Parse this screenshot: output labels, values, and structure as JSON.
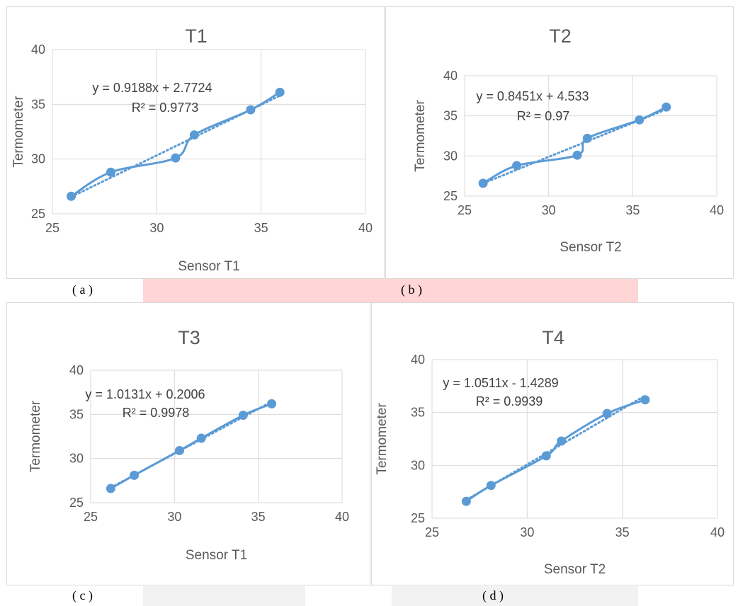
{
  "colors": {
    "line": "#5b9bd5",
    "grid": "#d9d9d9",
    "text": "#595959",
    "band_b": "#ffd5d5",
    "band_d": "#f2f2f2"
  },
  "captions": [
    "( a )",
    "( b )",
    "( c )",
    "( d )"
  ],
  "chart_data": [
    {
      "type": "scatter",
      "title": "T1",
      "xlabel": "Sensor T1",
      "ylabel": "Termometer",
      "xlim": [
        25,
        40
      ],
      "ylim": [
        25,
        40
      ],
      "xticks": [
        "25",
        "30",
        "35",
        "40"
      ],
      "yticks": [
        "25",
        "30",
        "35",
        "40"
      ],
      "grid": true,
      "trendline": {
        "type": "linear",
        "equation": "y = 0.9188x + 2.7724",
        "r2": "R² = 0.9773"
      },
      "series": [
        {
          "x": [
            25.9,
            27.8,
            30.9,
            31.8,
            34.5,
            35.9
          ],
          "y": [
            26.6,
            28.8,
            30.1,
            32.2,
            34.5,
            36.1
          ]
        }
      ]
    },
    {
      "type": "scatter",
      "title": "T2",
      "xlabel": "Sensor T2",
      "ylabel": "Termometer",
      "xlim": [
        25,
        40
      ],
      "ylim": [
        25,
        40
      ],
      "xticks": [
        "25",
        "30",
        "35",
        "40"
      ],
      "yticks": [
        "25",
        "30",
        "35",
        "40"
      ],
      "grid": true,
      "trendline": {
        "type": "linear",
        "equation": "y = 0.8451x + 4.533",
        "r2": "R² = 0.97"
      },
      "series": [
        {
          "x": [
            26.1,
            28.1,
            31.7,
            32.3,
            35.4,
            37.0
          ],
          "y": [
            26.6,
            28.8,
            30.1,
            32.2,
            34.5,
            36.1
          ]
        }
      ]
    },
    {
      "type": "scatter",
      "title": "T3",
      "xlabel": "Sensor T1",
      "ylabel": "Termometer",
      "xlim": [
        25,
        40
      ],
      "ylim": [
        25,
        40
      ],
      "xticks": [
        "25",
        "30",
        "35",
        "40"
      ],
      "yticks": [
        "25",
        "30",
        "35",
        "40"
      ],
      "grid": true,
      "trendline": {
        "type": "linear",
        "equation": "y = 1.0131x + 0.2006",
        "r2": "R² = 0.9978"
      },
      "series": [
        {
          "x": [
            26.2,
            27.6,
            30.3,
            31.6,
            34.1,
            35.8
          ],
          "y": [
            26.6,
            28.1,
            30.9,
            32.3,
            34.9,
            36.2
          ]
        }
      ]
    },
    {
      "type": "scatter",
      "title": "T4",
      "xlabel": "Sensor T2",
      "ylabel": "Termometer",
      "xlim": [
        25,
        40
      ],
      "ylim": [
        25,
        40
      ],
      "xticks": [
        "25",
        "30",
        "35",
        "40"
      ],
      "yticks": [
        "25",
        "30",
        "35",
        "40"
      ],
      "grid": true,
      "trendline": {
        "type": "linear",
        "equation": "y = 1.0511x - 1.4289",
        "r2": "R² = 0.9939"
      },
      "series": [
        {
          "x": [
            26.8,
            28.1,
            31.0,
            31.8,
            34.2,
            36.2
          ],
          "y": [
            26.6,
            28.1,
            30.9,
            32.3,
            34.9,
            36.2
          ]
        }
      ]
    }
  ]
}
